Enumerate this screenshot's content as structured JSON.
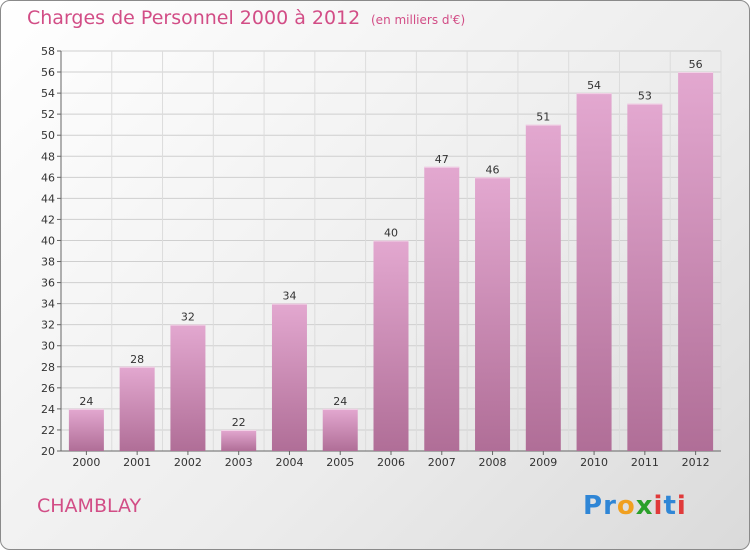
{
  "header": {
    "title": "Charges de Personnel 2000 à 2012",
    "subtitle": "(en milliers d'€)"
  },
  "footer": {
    "commune": "CHAMBLAY",
    "logo_letters": [
      {
        "ch": "P",
        "color": "#2f86d6"
      },
      {
        "ch": "r",
        "color": "#2f86d6"
      },
      {
        "ch": "o",
        "color": "#f0a020"
      },
      {
        "ch": "x",
        "color": "#2aa02a"
      },
      {
        "ch": "i",
        "color": "#e03a3a"
      },
      {
        "ch": "t",
        "color": "#2f86d6"
      },
      {
        "ch": "i",
        "color": "#e03a3a"
      }
    ]
  },
  "chart_data": {
    "type": "bar",
    "title": "Charges de Personnel 2000 à 2012",
    "subtitle": "(en milliers d'€)",
    "categories": [
      "2000",
      "2001",
      "2002",
      "2003",
      "2004",
      "2005",
      "2006",
      "2007",
      "2008",
      "2009",
      "2010",
      "2011",
      "2012"
    ],
    "values": [
      24,
      28,
      32,
      22,
      34,
      24,
      40,
      47,
      46,
      51,
      54,
      53,
      56
    ],
    "ylim": [
      20,
      58
    ],
    "yticks": [
      20,
      22,
      24,
      26,
      28,
      30,
      32,
      34,
      36,
      38,
      40,
      42,
      44,
      46,
      48,
      50,
      52,
      54,
      56,
      58
    ],
    "grid": true,
    "bar_color_top": "#e3a8d0",
    "bar_color_bottom": "#b06e97"
  }
}
